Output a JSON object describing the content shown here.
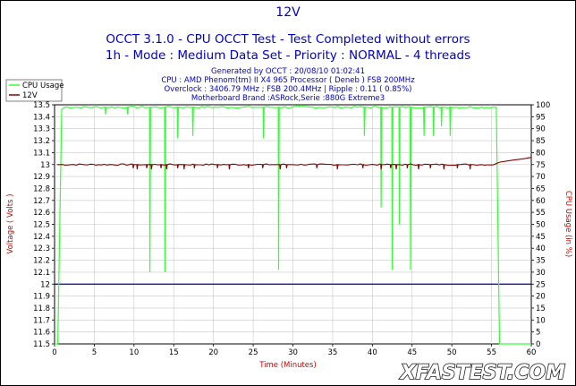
{
  "title": "12V",
  "subtitle_lines": [
    "OCCT 3.1.0 - CPU OCCT Test - Test Completed without errors",
    "1h - Mode : Medium Data Set - Priority : NORMAL - 4 threads"
  ],
  "info_lines": [
    "Generated by OCCT : 20/08/10 01:02:41",
    "CPU : AMD Phenom(tm) II X4 965 Processor ( Deneb ) FSB 200MHz",
    "Overclock : 3406.79 MHz ; FSB 200.4MHz | Ripple : 0.11 ( 0.85%)",
    "Motherboard Brand :ASRock,Serie :880G Extreme3"
  ],
  "watermark": "XFASTEST.COM",
  "colors": {
    "cpu": "#33ff33",
    "voltage": "#8b0000",
    "ref": "#000099",
    "title": "#0000cc",
    "axis_label": "#cc0000"
  },
  "chart_data": {
    "type": "line",
    "xlabel": "Time (Minutes)",
    "ylabel_left": "Voltage ( Volts )",
    "ylabel_right": "CPU Usage (in %)",
    "xlim": [
      0,
      60
    ],
    "ylim_left": [
      11.5,
      13.5
    ],
    "ylim_right": [
      0,
      100
    ],
    "x_ticks": [
      0,
      5,
      10,
      15,
      20,
      25,
      30,
      35,
      40,
      45,
      50,
      55,
      60
    ],
    "y_ticks_left": [
      "11.5",
      "11.6",
      "11.7",
      "11.8",
      "11.9",
      "12",
      "12.1",
      "12.2",
      "12.3",
      "12.4",
      "12.5",
      "12.6",
      "12.7",
      "12.8",
      "12.9",
      "13",
      "13.1",
      "13.2",
      "13.3",
      "13.4",
      "13.5"
    ],
    "y_ticks_right": [
      0,
      5,
      10,
      15,
      20,
      25,
      30,
      35,
      40,
      45,
      50,
      55,
      60,
      65,
      70,
      75,
      80,
      85,
      90,
      95,
      100
    ],
    "grid": true,
    "legend_position": "top-left",
    "reference_line": 12,
    "series": [
      {
        "name": "CPU Usage",
        "axis": "right",
        "baseline": 99,
        "start": [
          [
            0,
            0
          ],
          [
            0.4,
            0
          ],
          [
            0.9,
            98
          ]
        ],
        "dips": [
          [
            6.4,
            96
          ],
          [
            9.2,
            96
          ],
          [
            12.0,
            30
          ],
          [
            13.9,
            30
          ],
          [
            15.5,
            86
          ],
          [
            17.4,
            87
          ],
          [
            26.3,
            86
          ],
          [
            28.2,
            31
          ],
          [
            39.0,
            87
          ],
          [
            41.1,
            57
          ],
          [
            42.5,
            31
          ],
          [
            43.4,
            50
          ],
          [
            44.8,
            31
          ],
          [
            46.5,
            87
          ],
          [
            47.7,
            87
          ],
          [
            48.7,
            91
          ],
          [
            49.8,
            87
          ]
        ],
        "end": [
          [
            55.6,
            99
          ],
          [
            56.0,
            0
          ],
          [
            60,
            0
          ]
        ]
      },
      {
        "name": "12V",
        "axis": "left",
        "baseline": 13.0,
        "start": [
          [
            0.3,
            13.0
          ]
        ],
        "dips": [
          [
            9.9,
            12.97
          ],
          [
            10.4,
            12.96
          ],
          [
            11.6,
            12.97
          ],
          [
            12.2,
            12.96
          ],
          [
            13.4,
            12.97
          ],
          [
            14.1,
            12.96
          ],
          [
            15.5,
            12.97
          ],
          [
            16.3,
            12.96
          ],
          [
            17.6,
            12.97
          ],
          [
            20.5,
            12.97
          ],
          [
            22.0,
            12.96
          ],
          [
            24.4,
            12.97
          ],
          [
            26.2,
            12.97
          ],
          [
            28.4,
            12.96
          ],
          [
            29.2,
            12.97
          ],
          [
            33.0,
            12.97
          ],
          [
            35.6,
            12.96
          ],
          [
            38.8,
            12.97
          ],
          [
            41.1,
            12.96
          ],
          [
            42.3,
            12.97
          ],
          [
            43.0,
            12.96
          ],
          [
            44.4,
            12.97
          ],
          [
            45.8,
            12.96
          ],
          [
            47.3,
            12.97
          ],
          [
            49.0,
            12.96
          ],
          [
            50.7,
            12.97
          ],
          [
            52.3,
            12.96
          ]
        ],
        "end": [
          [
            55.3,
            13.0
          ],
          [
            56.0,
            13.02
          ],
          [
            57.0,
            13.03
          ],
          [
            58.0,
            13.04
          ],
          [
            59.2,
            13.05
          ],
          [
            60,
            13.06
          ]
        ]
      }
    ]
  }
}
